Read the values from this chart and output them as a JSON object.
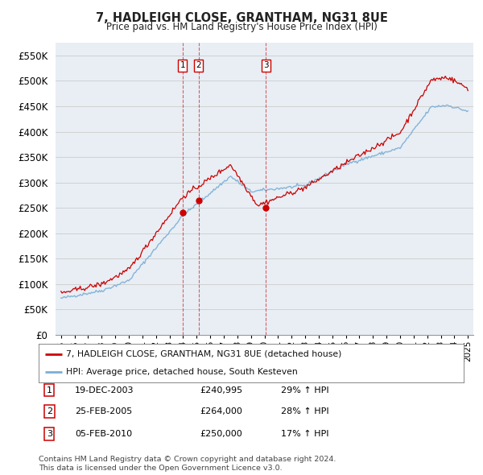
{
  "title": "7, HADLEIGH CLOSE, GRANTHAM, NG31 8UE",
  "subtitle": "Price paid vs. HM Land Registry's House Price Index (HPI)",
  "ylim": [
    0,
    575000
  ],
  "yticks": [
    0,
    50000,
    100000,
    150000,
    200000,
    250000,
    300000,
    350000,
    400000,
    450000,
    500000,
    550000
  ],
  "ytick_labels": [
    "£0",
    "£50K",
    "£100K",
    "£150K",
    "£200K",
    "£250K",
    "£300K",
    "£350K",
    "£400K",
    "£450K",
    "£500K",
    "£550K"
  ],
  "line1_color": "#cc0000",
  "line2_color": "#7aaed6",
  "vline_color": "#cc0000",
  "sale_marker_color": "#cc0000",
  "transactions": [
    {
      "num": 1,
      "date": "19-DEC-2003",
      "price": "£240,995",
      "hpi": "29% ↑ HPI",
      "year": 2003.97
    },
    {
      "num": 2,
      "date": "25-FEB-2005",
      "price": "£264,000",
      "hpi": "28% ↑ HPI",
      "year": 2005.15
    },
    {
      "num": 3,
      "date": "05-FEB-2010",
      "price": "£250,000",
      "hpi": "17% ↑ HPI",
      "year": 2010.1
    }
  ],
  "legend_line1": "7, HADLEIGH CLOSE, GRANTHAM, NG31 8UE (detached house)",
  "legend_line2": "HPI: Average price, detached house, South Kesteven",
  "footnote1": "Contains HM Land Registry data © Crown copyright and database right 2024.",
  "footnote2": "This data is licensed under the Open Government Licence v3.0.",
  "bg_color": "#ffffff",
  "grid_color": "#cccccc",
  "plot_bg": "#e8eef4"
}
